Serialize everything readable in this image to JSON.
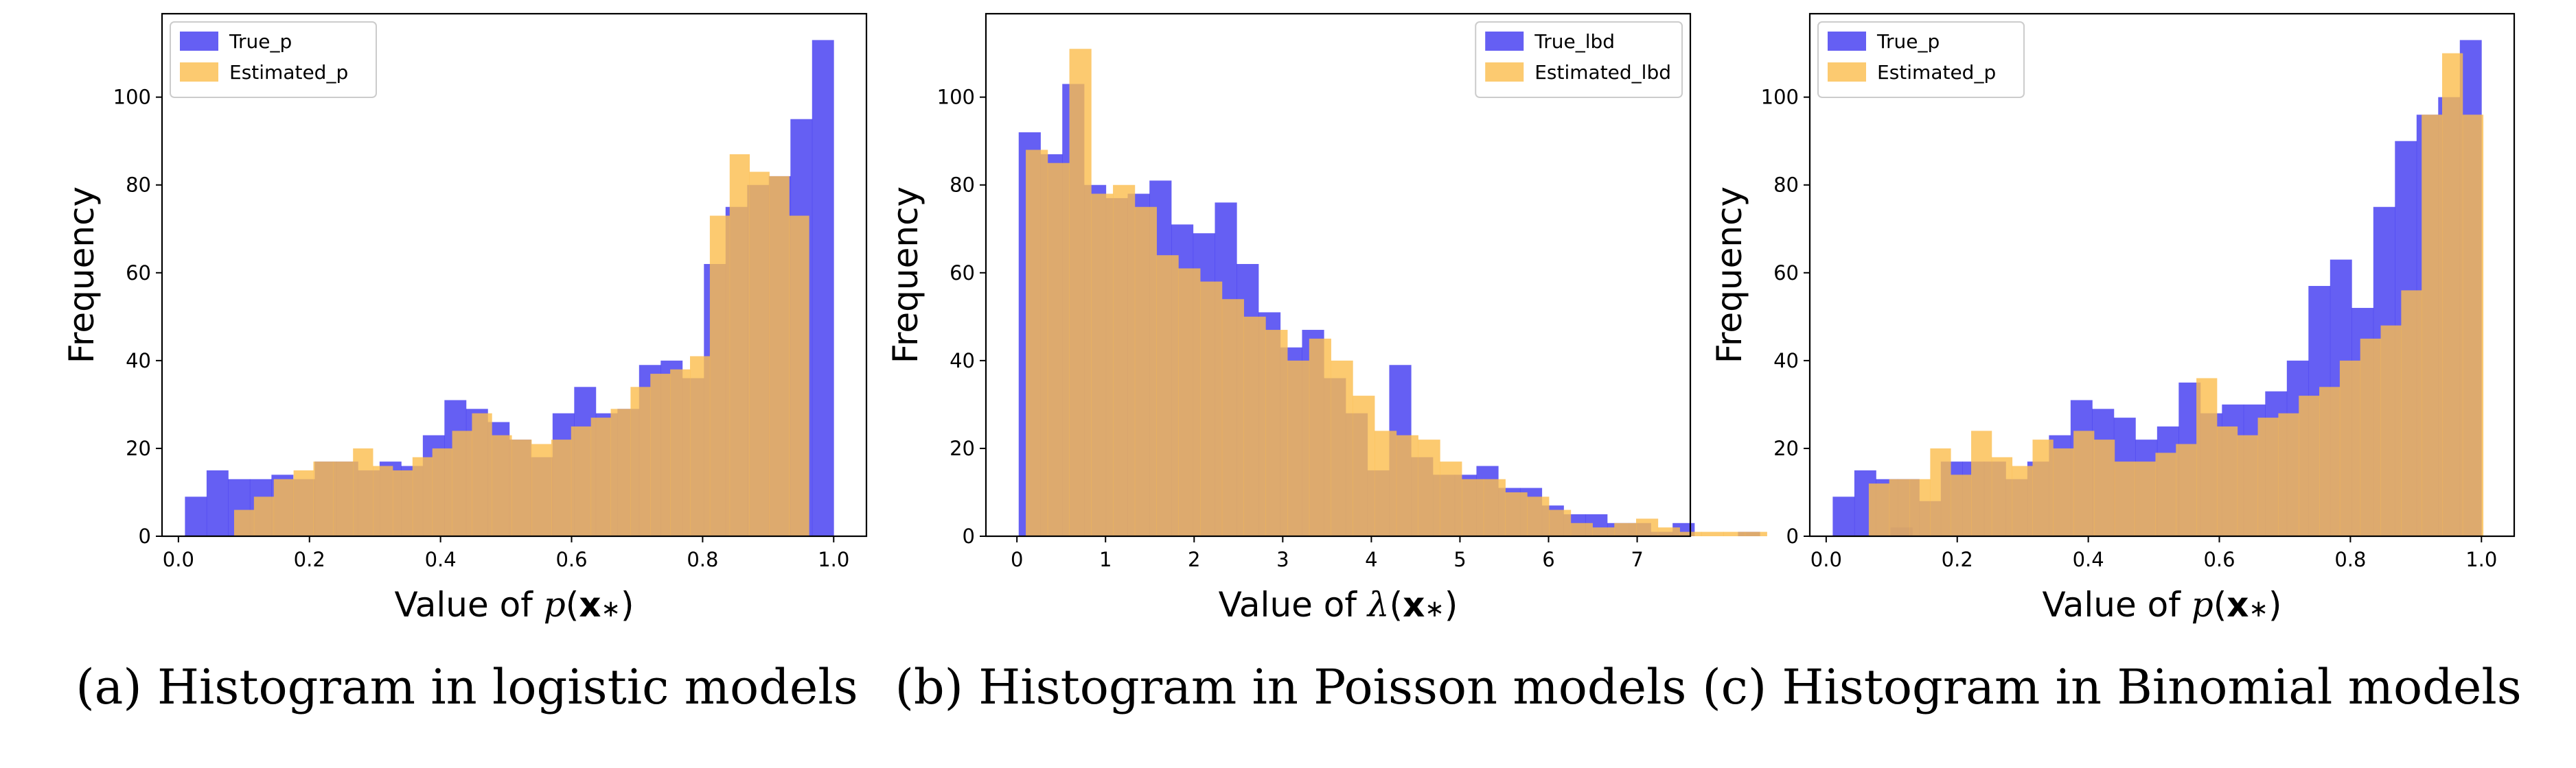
{
  "chart_data": [
    {
      "type": "bar",
      "histogram": true,
      "caption": "(a) Histogram in logistic models",
      "xlabel": "Value of p(x*)",
      "xlabel_parts": [
        "Value of ",
        "p",
        "(",
        "x",
        "∗",
        ")"
      ],
      "ylabel": "Frequency",
      "xlim": [
        -0.025,
        1.05
      ],
      "ylim": [
        0,
        119
      ],
      "xticks": [
        0.0,
        0.2,
        0.4,
        0.6,
        0.8,
        1.0
      ],
      "xtick_labels": [
        "0.0",
        "0.2",
        "0.4",
        "0.6",
        "0.8",
        "1.0"
      ],
      "yticks": [
        0,
        20,
        40,
        60,
        80,
        100
      ],
      "ytick_labels": [
        "0",
        "20",
        "40",
        "60",
        "80",
        "100"
      ],
      "legend_position": "top-left",
      "series": [
        {
          "name": "True_p",
          "color": "#3a32f0",
          "opacity": 0.78,
          "bin_start": 0.01,
          "bin_width": 0.033,
          "values": [
            9,
            15,
            13,
            13,
            14,
            13,
            17,
            17,
            15,
            17,
            16,
            23,
            31,
            29,
            26,
            22,
            18,
            28,
            34,
            28,
            29,
            39,
            40,
            36,
            62,
            75,
            80,
            82,
            95,
            113
          ]
        },
        {
          "name": "Estimated_p",
          "color": "#fbbd4c",
          "opacity": 0.8,
          "bin_start": 0.085,
          "bin_width": 0.03025,
          "values": [
            6,
            9,
            13,
            15,
            17,
            17,
            20,
            16,
            15,
            18,
            20,
            24,
            28,
            23,
            22,
            21,
            22,
            25,
            27,
            29,
            34,
            37,
            38,
            41,
            73,
            87,
            83,
            82,
            73
          ]
        }
      ]
    },
    {
      "type": "bar",
      "histogram": true,
      "caption": "(b) Histogram in Poisson models",
      "xlabel": "Value of λ(x*)",
      "xlabel_parts": [
        "Value of ",
        "λ",
        "(",
        "x",
        "∗",
        ")"
      ],
      "ylabel": "Frequency",
      "xlim": [
        -0.35,
        7.6
      ],
      "ylim": [
        0,
        119
      ],
      "xticks": [
        0,
        1,
        2,
        3,
        4,
        5,
        6,
        7
      ],
      "xtick_labels": [
        "0",
        "1",
        "2",
        "3",
        "4",
        "5",
        "6",
        "7"
      ],
      "yticks": [
        0,
        20,
        40,
        60,
        80,
        100
      ],
      "ytick_labels": [
        "0",
        "20",
        "40",
        "60",
        "80",
        "100"
      ],
      "legend_position": "top-right",
      "series": [
        {
          "name": "True_lbd",
          "color": "#3a32f0",
          "opacity": 0.78,
          "bin_start": 0.02,
          "bin_width": 0.246,
          "values": [
            92,
            87,
            103,
            80,
            77,
            78,
            81,
            71,
            69,
            76,
            62,
            51,
            43,
            47,
            36,
            28,
            15,
            39,
            18,
            14,
            14,
            16,
            11,
            11,
            7,
            5,
            5,
            3,
            3,
            1,
            3,
            0,
            0,
            1,
            0,
            0,
            0,
            0,
            0,
            0,
            2
          ]
        },
        {
          "name": "Estimated_lbd",
          "color": "#fbbd4c",
          "opacity": 0.8,
          "bin_start": 0.1,
          "bin_width": 0.246,
          "values": [
            88,
            85,
            111,
            78,
            80,
            75,
            64,
            61,
            58,
            54,
            50,
            47,
            40,
            45,
            40,
            32,
            24,
            23,
            22,
            17,
            13,
            13,
            10,
            9,
            6,
            3,
            2,
            3,
            4,
            2,
            1,
            1,
            1,
            1
          ]
        }
      ]
    },
    {
      "type": "bar",
      "histogram": true,
      "caption": "(c) Histogram in Binomial models",
      "xlabel": "Value of p(x*)",
      "xlabel_parts": [
        "Value of ",
        "p",
        "(",
        "x",
        "∗",
        ")"
      ],
      "ylabel": "Frequency",
      "xlim": [
        -0.025,
        1.05
      ],
      "ylim": [
        0,
        119
      ],
      "xticks": [
        0.0,
        0.2,
        0.4,
        0.6,
        0.8,
        1.0
      ],
      "xtick_labels": [
        "0.0",
        "0.2",
        "0.4",
        "0.6",
        "0.8",
        "1.0"
      ],
      "yticks": [
        0,
        20,
        40,
        60,
        80,
        100
      ],
      "ytick_labels": [
        "0",
        "20",
        "40",
        "60",
        "80",
        "100"
      ],
      "legend_position": "top-left",
      "series": [
        {
          "name": "True_p",
          "color": "#3a32f0",
          "opacity": 0.78,
          "bin_start": 0.01,
          "bin_width": 0.033,
          "values": [
            9,
            15,
            13,
            13,
            8,
            17,
            17,
            17,
            13,
            17,
            23,
            31,
            29,
            27,
            22,
            25,
            35,
            28,
            30,
            30,
            33,
            40,
            57,
            63,
            52,
            75,
            90,
            96,
            100,
            113
          ]
        },
        {
          "name": "Estimated_p",
          "color": "#fbbd4c",
          "opacity": 0.8,
          "bin_start": 0.065,
          "bin_width": 0.03125,
          "values": [
            12,
            13,
            13,
            20,
            14,
            24,
            18,
            16,
            22,
            20,
            24,
            22,
            17,
            17,
            19,
            21,
            36,
            25,
            23,
            27,
            28,
            32,
            34,
            40,
            45,
            48,
            56,
            96,
            110,
            96
          ]
        }
      ]
    }
  ]
}
